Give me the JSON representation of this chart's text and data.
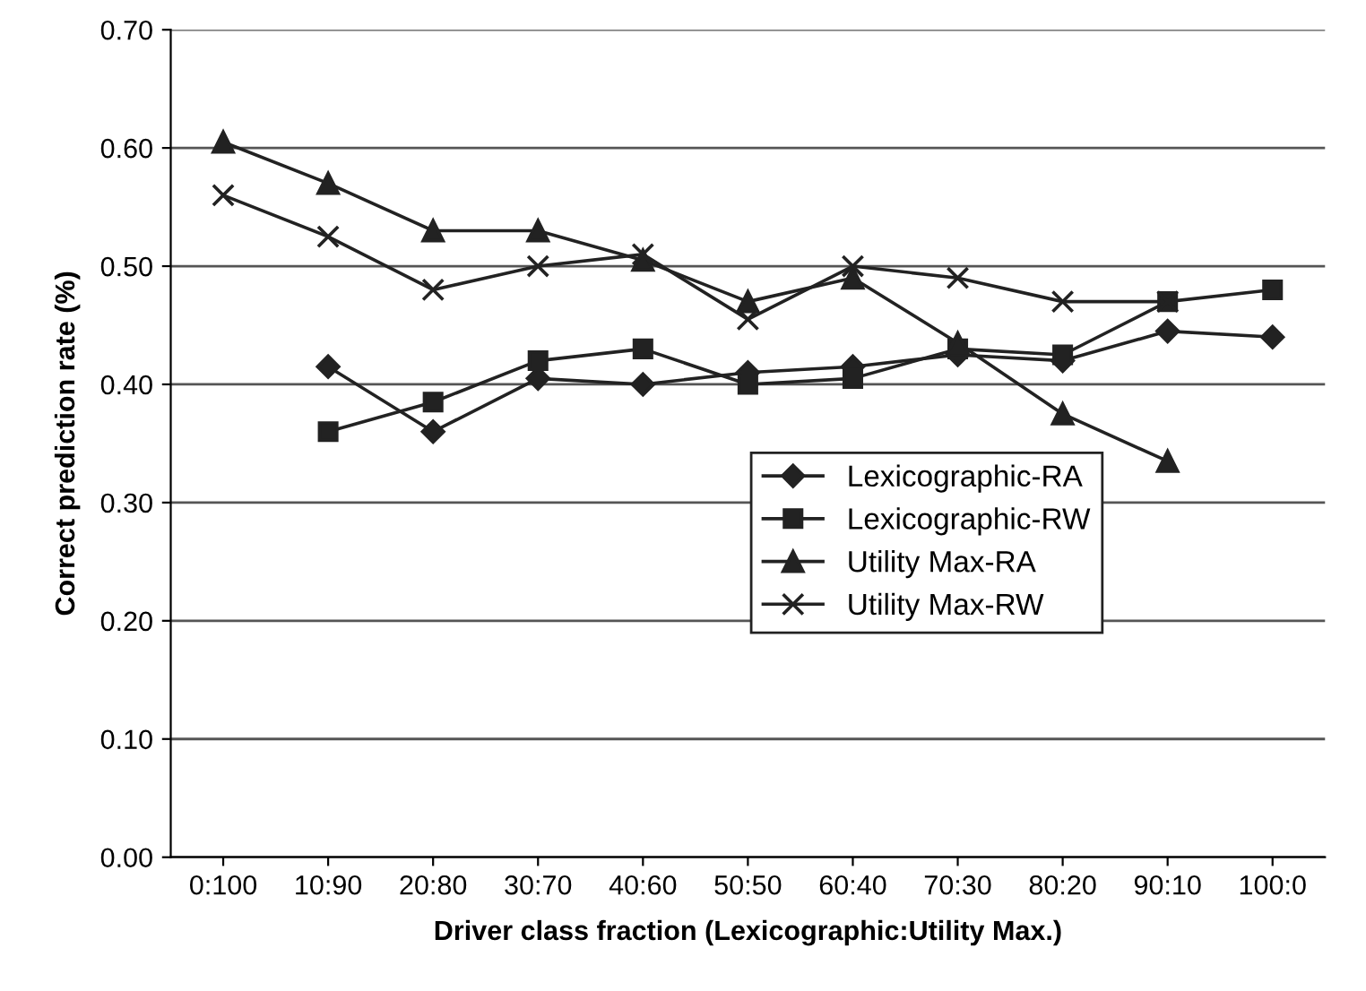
{
  "chart_data": {
    "type": "line",
    "xlabel": "Driver class fraction (Lexicographic:Utility Max.)",
    "ylabel": "Correct prediction rate (%)",
    "categories": [
      "0:100",
      "10:90",
      "20:80",
      "30:70",
      "40:60",
      "50:50",
      "60:40",
      "70:30",
      "80:20",
      "90:10",
      "100:0"
    ],
    "ylim": [
      0,
      0.7
    ],
    "yticks": [
      {
        "value": 0,
        "label": "0.00"
      },
      {
        "value": 0.1,
        "label": "0.10"
      },
      {
        "value": 0.2,
        "label": "0.20"
      },
      {
        "value": 0.3,
        "label": "0.30"
      },
      {
        "value": 0.4,
        "label": "0.40"
      },
      {
        "value": 0.5,
        "label": "0.50"
      },
      {
        "value": 0.6,
        "label": "0.60"
      },
      {
        "value": 0.7,
        "label": "0.70"
      }
    ],
    "grid": "y",
    "legend": "center right",
    "line_style": "solid",
    "series": [
      {
        "name": "Lexicographic-RA",
        "color": "#222222",
        "marker": "diamond",
        "values": [
          null,
          0.415,
          0.36,
          0.405,
          0.4,
          0.41,
          0.415,
          0.425,
          0.42,
          0.445,
          0.44
        ]
      },
      {
        "name": "Lexicographic-RW",
        "color": "#222222",
        "marker": "square",
        "values": [
          null,
          0.36,
          0.385,
          0.42,
          0.43,
          0.4,
          0.405,
          0.43,
          0.425,
          0.47,
          0.48
        ]
      },
      {
        "name": "Utility Max-RA",
        "color": "#222222",
        "marker": "triangle",
        "values": [
          0.605,
          0.57,
          0.53,
          0.53,
          0.505,
          0.47,
          0.49,
          0.435,
          0.375,
          0.335,
          null
        ]
      },
      {
        "name": "Utility Max-RW",
        "color": "#222222",
        "marker": "cross",
        "values": [
          0.56,
          0.525,
          0.48,
          0.5,
          0.51,
          0.455,
          0.5,
          0.49,
          0.47,
          0.47,
          null
        ]
      }
    ]
  }
}
